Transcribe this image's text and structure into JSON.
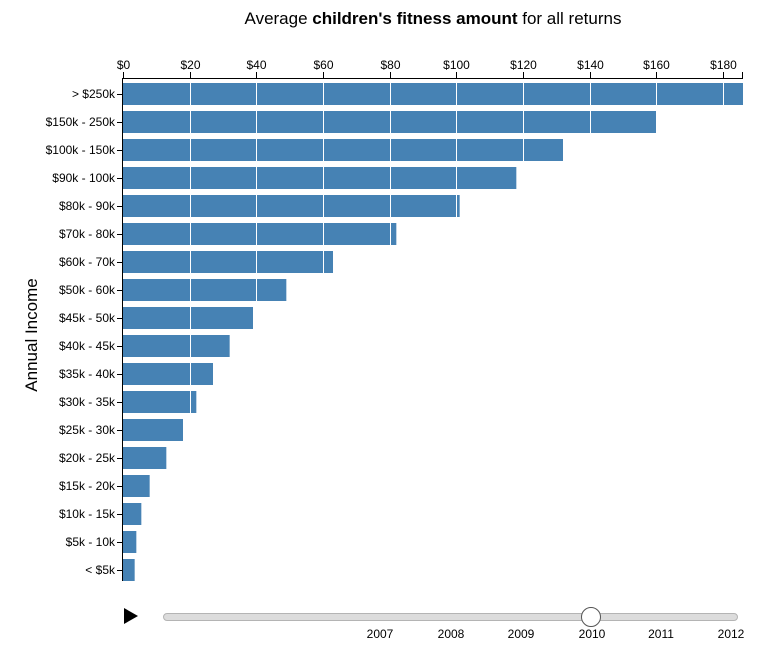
{
  "title": {
    "prefix": "Average ",
    "highlight": "children's fitness amount",
    "suffix": " for all returns"
  },
  "colors": {
    "bar": "#4682b4",
    "highlight": "#4682b4",
    "gridline": "#ffffff"
  },
  "chart_data": {
    "type": "bar",
    "orientation": "horizontal",
    "title": "Average children's fitness amount for all returns",
    "ylabel": "Annual Income",
    "xlabel": "",
    "x_axis_position": "top",
    "xlim": [
      0,
      186
    ],
    "x_ticks": [
      0,
      20,
      40,
      60,
      80,
      100,
      120,
      140,
      160,
      180
    ],
    "x_tick_labels": [
      "$0",
      "$20",
      "$40",
      "$60",
      "$80",
      "$100",
      "$120",
      "$140",
      "$160",
      "$180"
    ],
    "grid": true,
    "categories": [
      "> $250k",
      "$150k - 250k",
      "$100k - 150k",
      "$90k - 100k",
      "$80k - 90k",
      "$70k - 80k",
      "$60k - 70k",
      "$50k - 60k",
      "$45k - 50k",
      "$40k - 45k",
      "$35k - 40k",
      "$30k - 35k",
      "$25k - 30k",
      "$20k - 25k",
      "$15k - 20k",
      "$10k - 15k",
      "$5k - 10k",
      "< $5k"
    ],
    "values": [
      186,
      160,
      132,
      118,
      101,
      82,
      63,
      49,
      39,
      32,
      27,
      22,
      18,
      13,
      8,
      5.5,
      4,
      3.5
    ]
  },
  "slider": {
    "years": [
      "2007",
      "2008",
      "2009",
      "2010",
      "2011",
      "2012"
    ],
    "selected_year": "2010",
    "play_icon": "play-icon"
  }
}
